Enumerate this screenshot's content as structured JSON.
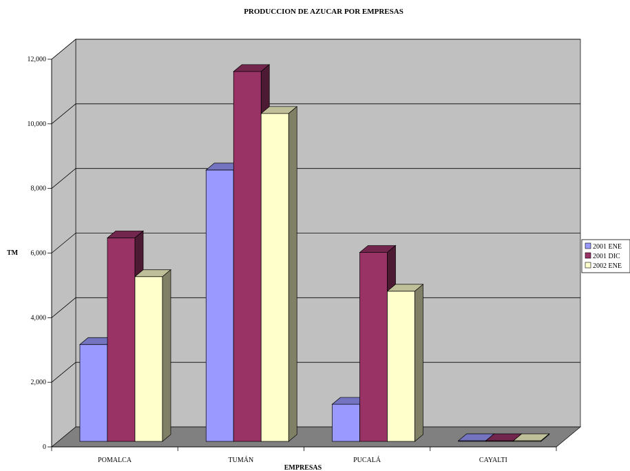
{
  "chart_data": {
    "type": "bar",
    "title": "PRODUCCION DE AZUCAR POR EMPRESAS",
    "xlabel": "EMPRESAS",
    "ylabel": "TM",
    "categories": [
      "POMALCA",
      "TUMÁN",
      "PUCALÁ",
      "CAYALTI"
    ],
    "series": [
      {
        "name": "2001 ENE",
        "values": [
          3000,
          8400,
          1150,
          0
        ],
        "color": "#9999FF"
      },
      {
        "name": "2001 DIC",
        "values": [
          6300,
          11450,
          5850,
          0
        ],
        "color": "#993366"
      },
      {
        "name": "2002 ENE",
        "values": [
          5100,
          10150,
          4650,
          0
        ],
        "color": "#FFFFCC"
      }
    ],
    "ylim": [
      0,
      12000
    ],
    "yticks": [
      0,
      2000,
      4000,
      6000,
      8000,
      10000,
      12000
    ],
    "ytick_labels": [
      "0",
      "2,000",
      "4,000",
      "6,000",
      "8,000",
      "10,000",
      "12,000"
    ],
    "grid": true,
    "legend_position": "right",
    "wall_color": "#C0C0C0",
    "floor_color": "#808080"
  }
}
